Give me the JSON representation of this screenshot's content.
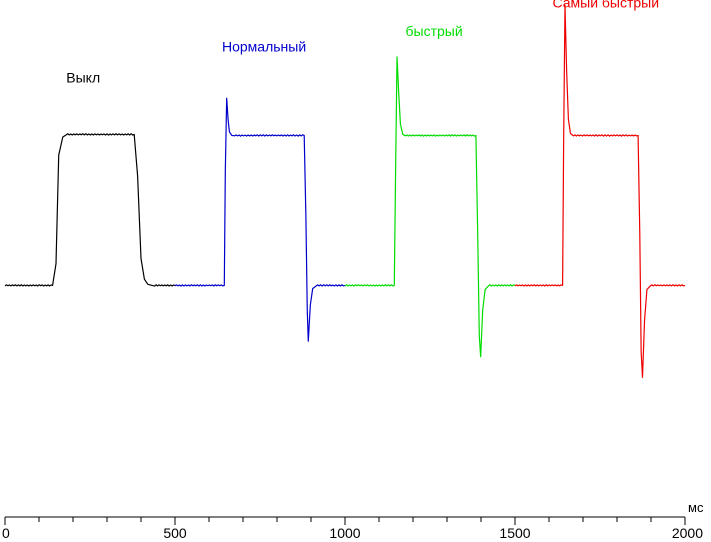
{
  "chart_data": {
    "type": "line",
    "x_unit": "мс",
    "xlim": [
      0,
      2000
    ],
    "x_ticks": [
      0,
      500,
      1000,
      1500,
      2000
    ],
    "x_minor_step": 100,
    "ylim": [
      0,
      100
    ],
    "grid": false,
    "series": [
      {
        "name": "Выкл",
        "color": "#000000",
        "x": [
          0,
          140,
          150,
          158,
          170,
          180,
          380,
          390,
          400,
          410,
          420,
          440,
          500
        ],
        "y": [
          44.8,
          44.8,
          49,
          70,
          73.5,
          74,
          74,
          66,
          50,
          46,
          45,
          44.8,
          44.8
        ]
      },
      {
        "name": "Нормальный",
        "color": "#0000cc",
        "x": [
          500,
          645,
          648,
          652,
          656,
          660,
          667,
          675,
          880,
          885,
          889,
          892,
          898,
          905,
          915,
          1000
        ],
        "y": [
          44.8,
          44.8,
          67,
          81,
          77,
          74.5,
          73.8,
          73.8,
          73.8,
          58,
          40,
          34,
          41,
          44.2,
          44.8,
          44.8
        ]
      },
      {
        "name": "быстрый",
        "color": "#00dd00",
        "x": [
          1000,
          1145,
          1149,
          1153,
          1158,
          1163,
          1170,
          1178,
          1385,
          1390,
          1395,
          1399,
          1405,
          1412,
          1422,
          1500
        ],
        "y": [
          44.8,
          44.8,
          68,
          89,
          82,
          76,
          74,
          73.8,
          73.8,
          56,
          35,
          31,
          40,
          44,
          44.8,
          44.8
        ]
      },
      {
        "name": "Самый быстрый",
        "color": "#ee0000",
        "x": [
          1500,
          1640,
          1643,
          1647,
          1652,
          1657,
          1663,
          1672,
          1862,
          1867,
          1871,
          1875,
          1881,
          1888,
          1898,
          2000
        ],
        "y": [
          44.8,
          44.8,
          72,
          99,
          86,
          77,
          74.2,
          73.8,
          73.8,
          55,
          32,
          27,
          38,
          44,
          44.8,
          44.8
        ]
      }
    ],
    "annotations": [
      {
        "text": "Выкл",
        "x": 230,
        "y": 85,
        "color": "#000000"
      },
      {
        "text": "Нормальный",
        "x": 762,
        "y": 91,
        "color": "#0000cc"
      },
      {
        "text": "быстрый",
        "x": 1262,
        "y": 94,
        "color": "#00dd00"
      },
      {
        "text": "Самый быстрый",
        "x": 1767,
        "y": 99.5,
        "color": "#ee0000"
      }
    ]
  }
}
